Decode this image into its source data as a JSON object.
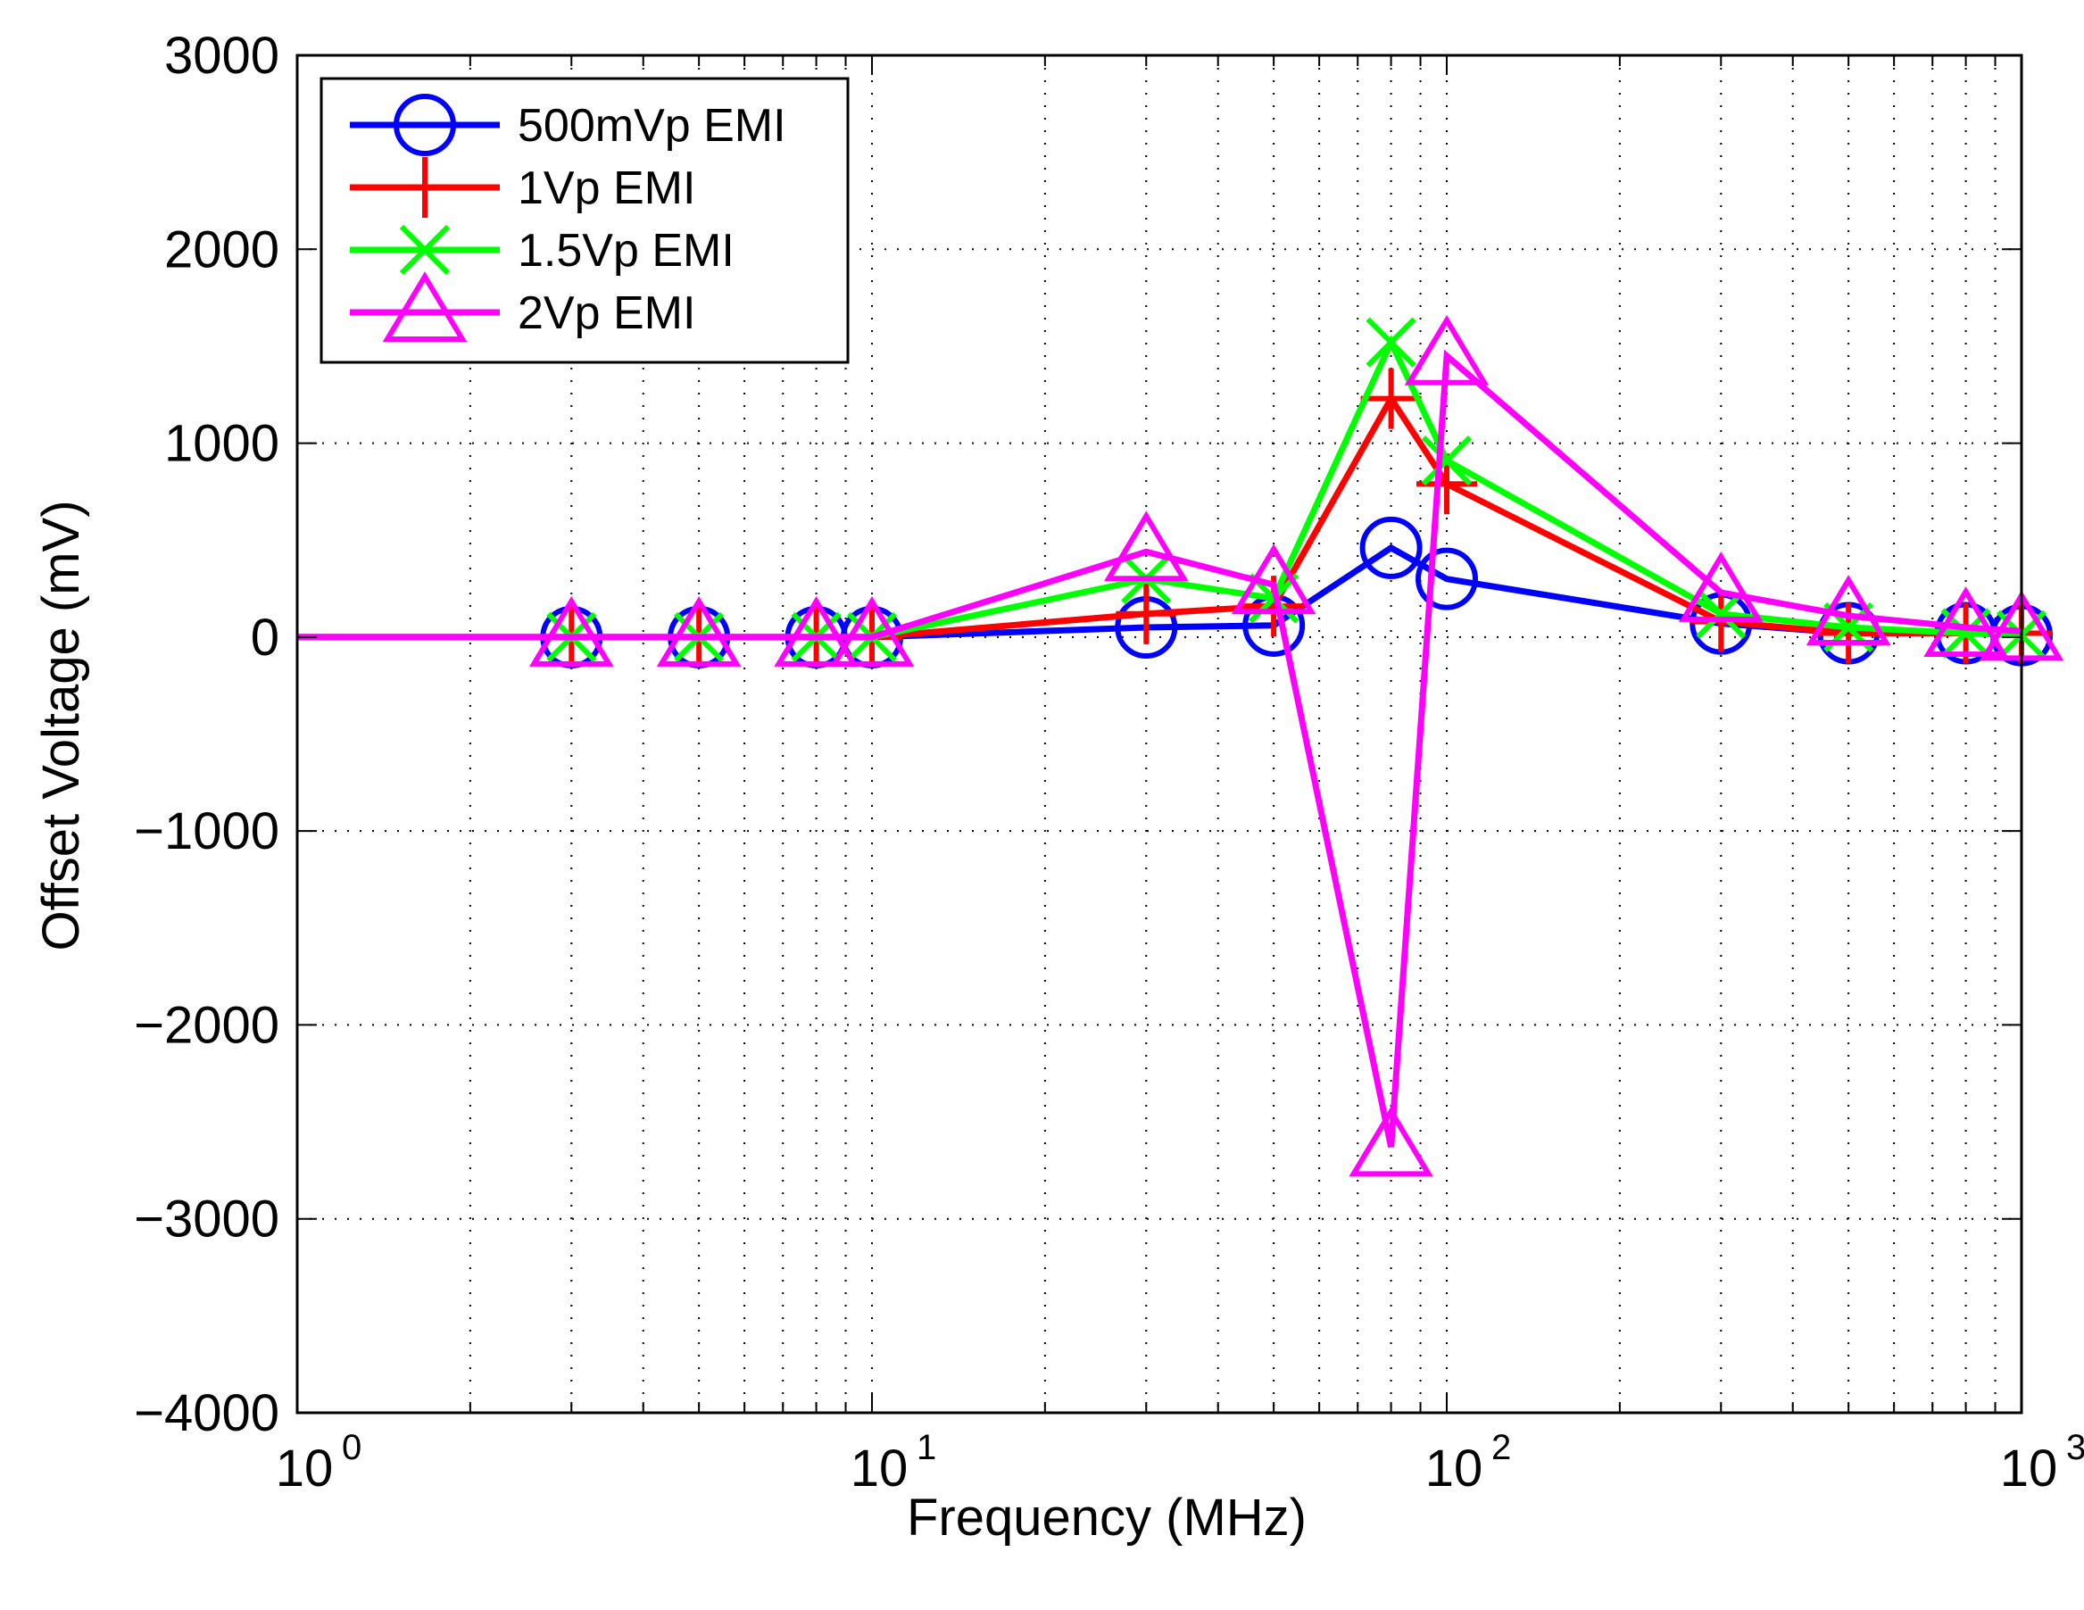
{
  "chart_data": {
    "type": "line",
    "xlabel": "Frequency (MHz)",
    "ylabel": "Offset Voltage (mV)",
    "xscale": "log",
    "xlim": [
      1,
      1000
    ],
    "ylim": [
      -4000,
      3000
    ],
    "grid": true,
    "legend_position": "top-left",
    "x_ticks": [
      {
        "value": 1,
        "base": "10",
        "exp": "0"
      },
      {
        "value": 10,
        "base": "10",
        "exp": "1"
      },
      {
        "value": 100,
        "base": "10",
        "exp": "2"
      },
      {
        "value": 1000,
        "base": "10",
        "exp": "3"
      }
    ],
    "y_ticks": [
      {
        "value": 3000,
        "label": "3000"
      },
      {
        "value": 2000,
        "label": "2000"
      },
      {
        "value": 1000,
        "label": "1000"
      },
      {
        "value": 0,
        "label": "0"
      },
      {
        "value": -1000,
        "label": "−1000"
      },
      {
        "value": -2000,
        "label": "−2000"
      },
      {
        "value": -3000,
        "label": "−3000"
      },
      {
        "value": -4000,
        "label": "−4000"
      }
    ],
    "series": [
      {
        "name": "500mVp EMI",
        "color": "#0000ff",
        "marker": "circle",
        "x": [
          1,
          3,
          5,
          8,
          10,
          30,
          50,
          80,
          100,
          300,
          500,
          800,
          1000
        ],
        "y": [
          0,
          0,
          0,
          0,
          0,
          50,
          60,
          460,
          300,
          70,
          20,
          20,
          10
        ]
      },
      {
        "name": "1Vp EMI",
        "color": "#ff0000",
        "marker": "plus",
        "x": [
          1,
          3,
          5,
          8,
          10,
          30,
          50,
          80,
          100,
          300,
          500,
          800,
          1000
        ],
        "y": [
          0,
          0,
          0,
          0,
          0,
          120,
          160,
          1230,
          790,
          80,
          20,
          20,
          20
        ]
      },
      {
        "name": "1.5Vp EMI",
        "color": "#00ff00",
        "marker": "x",
        "x": [
          1,
          3,
          5,
          8,
          10,
          30,
          50,
          80,
          100,
          300,
          500,
          800,
          1000
        ],
        "y": [
          0,
          0,
          0,
          0,
          0,
          300,
          200,
          1520,
          910,
          120,
          50,
          20,
          10
        ]
      },
      {
        "name": "2Vp EMI",
        "color": "#ff00ff",
        "marker": "triangle",
        "x": [
          1,
          3,
          5,
          8,
          10,
          30,
          50,
          80,
          100,
          300,
          500,
          800,
          1000
        ],
        "y": [
          0,
          0,
          0,
          0,
          0,
          440,
          270,
          -2630,
          1450,
          230,
          110,
          50,
          30
        ]
      }
    ]
  }
}
